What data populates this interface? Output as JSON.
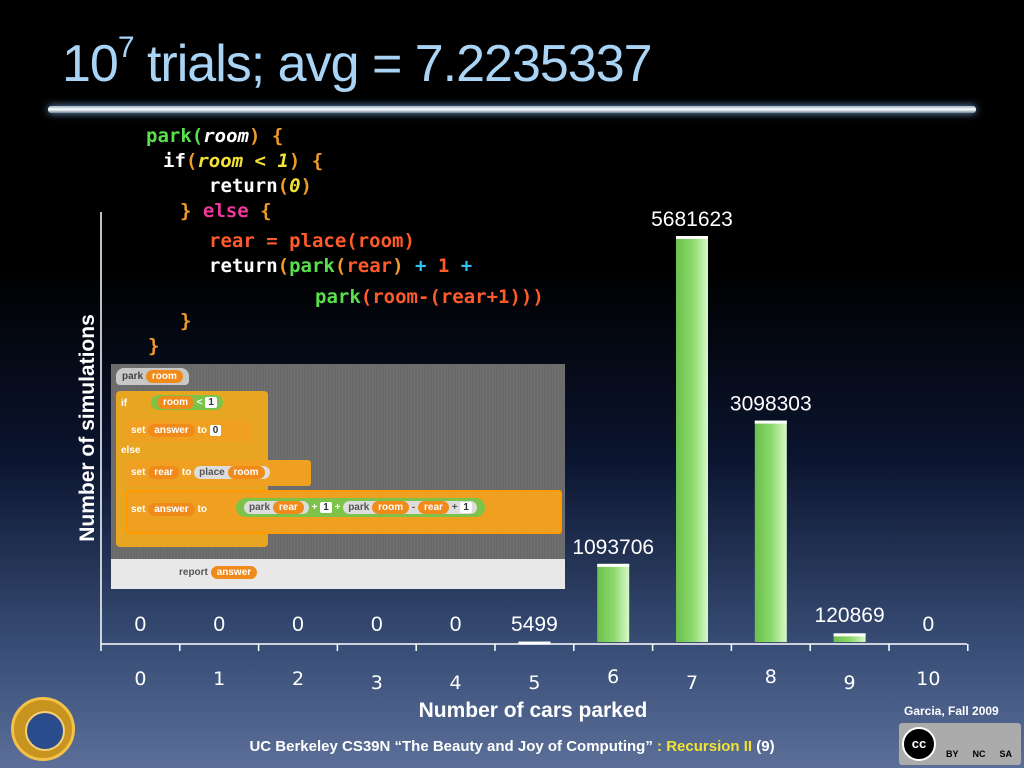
{
  "title": {
    "base": "10",
    "exp": "7",
    "rest": " trials; avg = 7.2235337"
  },
  "code": {
    "l1a": "park(",
    "l1b": "room",
    "l1c": ") {",
    "l2a": "if",
    "l2b": "(",
    "l2c": "room < 1",
    "l2d": ") {",
    "l3a": "return",
    "l3b": "(",
    "l3c": "0",
    "l3d": ")",
    "l4a": "} ",
    "l4b": "else",
    "l4c": " {",
    "l5a": "rear = place(room)",
    "l6a": "return",
    "l6b": "(",
    "l6c": "park",
    "l6d": "(",
    "l6e": "rear",
    "l6f": ") ",
    "l6g": "+ ",
    "l6h": "1",
    "l6i": " +",
    "l7a": "park",
    "l7b": "(room-(rear+1)))",
    "l8": "}",
    "l9": "}"
  },
  "blocks": {
    "hat": "park",
    "hat_param": "room",
    "if": "if",
    "if_var": "room",
    "if_op": "<",
    "if_val": "1",
    "set1": "set",
    "set1_var": "answer",
    "set1_to": "to",
    "set1_val": "0",
    "else": "else",
    "set2": "set",
    "set2_var": "rear",
    "set2_to": "to",
    "set2_fn": "place",
    "set2_arg": "room",
    "set3": "set",
    "set3_var": "answer",
    "set3_to": "to",
    "set3_park1": "park",
    "set3_rear1": "rear",
    "set3_plus1": "+",
    "set3_one1": "1",
    "set3_plus2": "+",
    "set3_park2": "park",
    "set3_room": "room",
    "set3_minus": "-",
    "set3_rear2": "rear",
    "set3_plus3": "+",
    "set3_one2": "1",
    "report": "report",
    "report_var": "answer"
  },
  "chart_data": {
    "type": "bar",
    "categories": [
      "0",
      "1",
      "2",
      "3",
      "4",
      "5",
      "6",
      "7",
      "8",
      "9",
      "10"
    ],
    "values": [
      0,
      0,
      0,
      0,
      0,
      5499,
      1093706,
      5681623,
      3098303,
      120869,
      0
    ],
    "value_labels": [
      "0",
      "0",
      "0",
      "0",
      "0",
      "5499",
      "1093706",
      "5681623",
      "3098303",
      "120869",
      "0"
    ],
    "xlabel": "Number of cars parked",
    "ylabel": "Number of simulations",
    "ylim": [
      0,
      6000000
    ],
    "bar_color": "#8ad86a"
  },
  "footer": {
    "main": "UC Berkeley CS39N “The Beauty and Joy of Computing”",
    "colon": " : ",
    "topic": "Recursion II",
    "page": " (9)"
  },
  "credit": "Garcia, Fall 2009",
  "license": {
    "cc": "cc",
    "by": "BY",
    "nc": "NC",
    "sa": "SA"
  },
  "colors": {
    "title": "#a9d4f5",
    "topic": "#f2e235"
  }
}
